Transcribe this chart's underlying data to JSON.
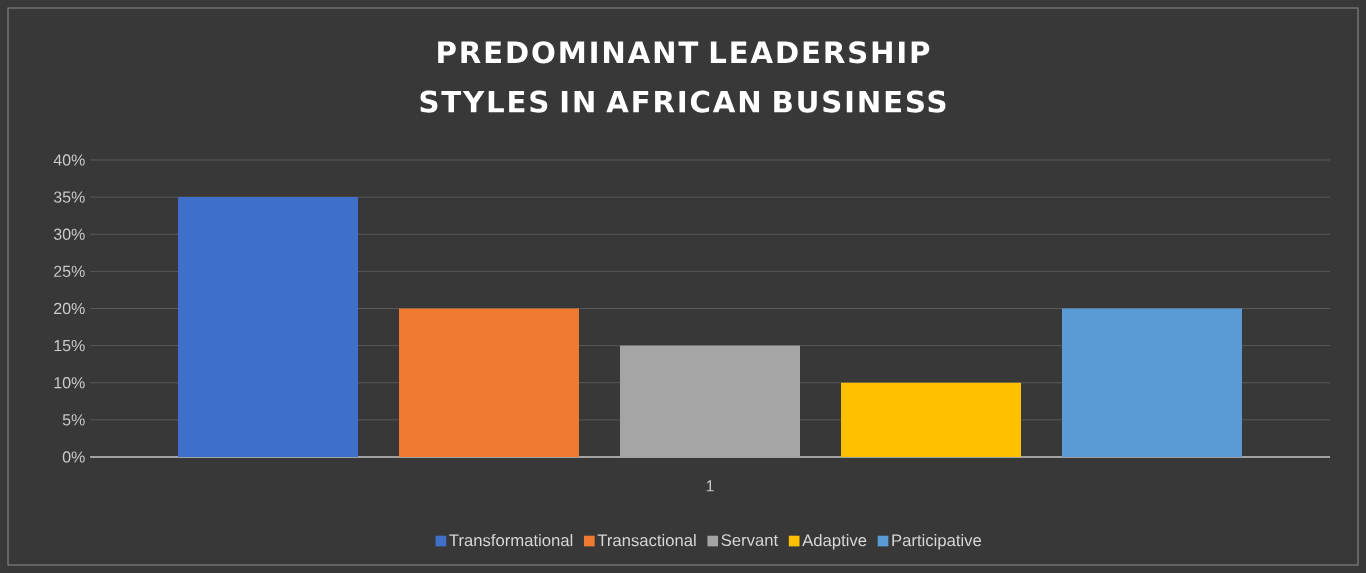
{
  "chart_data": {
    "type": "bar",
    "title": "PREDOMINANT LEADERSHIP STYLES IN AFRICAN BUSINESS",
    "categories": [
      "1"
    ],
    "series": [
      {
        "name": "Transformational",
        "color": "#3f6fc9",
        "values": [
          35
        ]
      },
      {
        "name": "Transactional",
        "color": "#ee7b30",
        "values": [
          20
        ]
      },
      {
        "name": "Servant",
        "color": "#a5a5a5",
        "values": [
          15
        ]
      },
      {
        "name": "Adaptive",
        "color": "#ffc000",
        "values": [
          10
        ]
      },
      {
        "name": "Participative",
        "color": "#5b9bd5",
        "values": [
          20
        ]
      }
    ],
    "ylim": [
      0,
      40
    ],
    "yticks": [
      {
        "value": 0,
        "label": "0%"
      },
      {
        "value": 5,
        "label": "5%"
      },
      {
        "value": 10,
        "label": "10%"
      },
      {
        "value": 15,
        "label": "15%"
      },
      {
        "value": 20,
        "label": "20%"
      },
      {
        "value": 25,
        "label": "25%"
      },
      {
        "value": 30,
        "label": "30%"
      },
      {
        "value": 35,
        "label": "35%"
      },
      {
        "value": 40,
        "label": "40%"
      }
    ],
    "grid": "y",
    "legend": "bottom"
  }
}
